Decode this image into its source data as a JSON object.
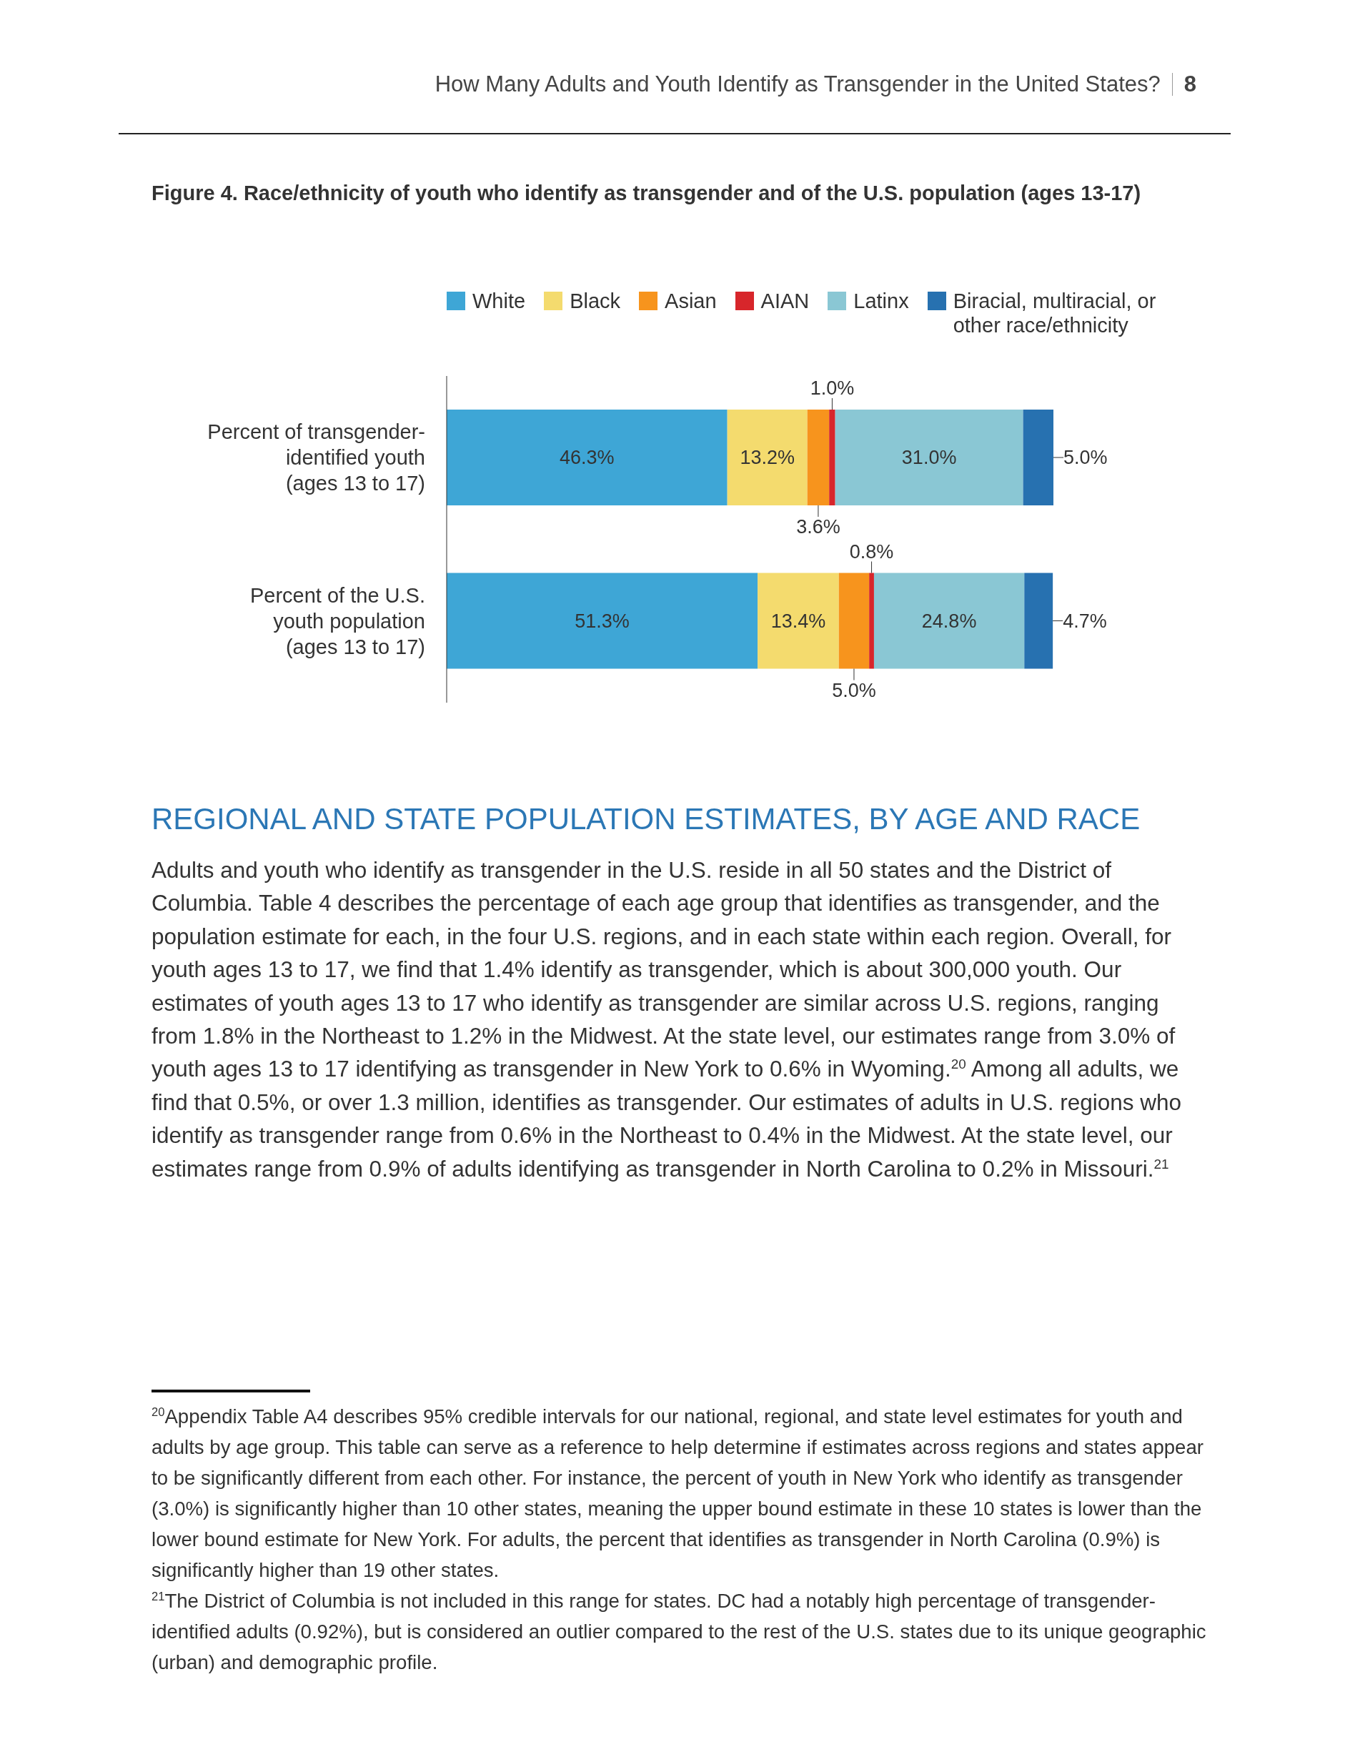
{
  "chart_data": {
    "type": "bar",
    "orientation": "horizontal",
    "stacked": true,
    "legend": "top",
    "tick_labels": "y",
    "title": "Figure 4. Race/ethnicity of youth who identify as transgender and of the U.S. population (ages 13-17)",
    "categories": [
      "Percent of transgender-identified youth (ages 13 to 17)",
      "Percent of the U.S. youth population (ages 13 to 17)"
    ],
    "series": [
      {
        "name": "White",
        "color": "#3ea6d6",
        "values": [
          46.3,
          51.3
        ],
        "value_labels": [
          "46.3%",
          "51.3%"
        ]
      },
      {
        "name": "Black",
        "color": "#f4db6e",
        "values": [
          13.2,
          13.4
        ],
        "value_labels": [
          "13.2%",
          "13.4%"
        ]
      },
      {
        "name": "Asian",
        "color": "#f7941d",
        "values": [
          3.6,
          5.0
        ],
        "value_labels": [
          "3.6%",
          "5.0%"
        ]
      },
      {
        "name": "AIAN",
        "color": "#d7262b",
        "values": [
          1.0,
          0.8
        ],
        "value_labels": [
          "1.0%",
          "0.8%"
        ]
      },
      {
        "name": "Latinx",
        "color": "#8ac7d4",
        "values": [
          31.0,
          24.8
        ],
        "value_labels": [
          "31.0%",
          "24.8%"
        ]
      },
      {
        "name": "Biracial, multiracial, or other race/ethnicity",
        "color": "#2771b0",
        "values": [
          5.0,
          4.7
        ],
        "value_labels": [
          "5.0%",
          "4.7%"
        ]
      }
    ],
    "annotations": [
      "How Many Adults and Youth Identify as Transgender in the United States?",
      "8",
      "REGIONAL AND STATE POPULATION ESTIMATES, BY AGE AND RACE",
      "Adults and youth who identify as transgender in the U.S. reside in all 50 states and the District of Columbia. Table 4 describes the percentage of each age group that identifies as transgender, and the population estimate for each, in the four U.S. regions, and in each state within each region. Overall, for youth ages 13 to 17, we find that 1.4% identify as transgender, which is about 300,000 youth. Our estimates of youth ages 13 to 17 who identify as transgender are similar across U.S. regions, ranging from 1.8% in the Northeast to 1.2% in the Midwest. At the state level, our estimates range from 3.0% of youth ages 13 to 17 identifying as transgender in New York to 0.6% in Wyoming.$^{20}$ Among all adults, we find that 0.5%, or over 1.3 million, identifies as transgender. Our estimates of adults in U.S. regions who identify as transgender range from 0.6% in the Northeast to 0.4% in the Midwest. At the state level, our estimates range from 0.9% of adults identifying as transgender in North Carolina to 0.2% in Missouri.$^{21}$",
      "$^{20}$Appendix Table A4 describes 95% credible intervals for our national, regional, and state level estimates for youth and adults by age group. This table can serve as a reference to help determine if estimates across regions and states appear to be significantly different from each other. For instance, the percent of youth in New York who identify as transgender (3.0%) is significantly higher than 10 other states, meaning the upper bound estimate in these 10 states is lower than the lower bound estimate for New York. For adults, the percent that identifies as transgender in North Carolina (0.9%) is significantly higher than 19 other states.",
      "$^{21}$The District of Columbia is not included in this range for states. DC had a notably high percentage of transgender-identified adults (0.92%), but is considered an outlier compared to the rest of the U.S. states due to its unique geographic (urban) and demographic profile."
    ]
  }
}
